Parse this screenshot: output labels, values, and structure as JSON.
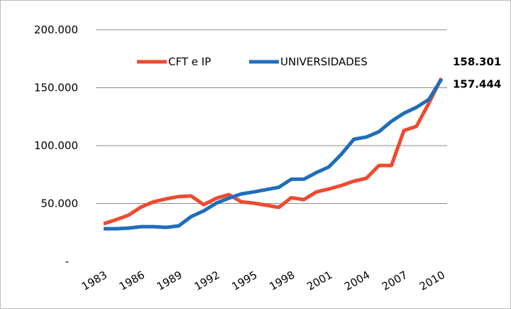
{
  "chart_data": {
    "type": "line",
    "x": [
      1983,
      1984,
      1985,
      1986,
      1987,
      1988,
      1989,
      1990,
      1991,
      1992,
      1993,
      1994,
      1995,
      1996,
      1997,
      1998,
      1999,
      2000,
      2001,
      2002,
      2003,
      2004,
      2005,
      2006,
      2007,
      2008,
      2009,
      2010
    ],
    "xlim": [
      1983,
      2010
    ],
    "xticks": [
      1983,
      1986,
      1989,
      1992,
      1995,
      1998,
      2001,
      2004,
      2007,
      2010
    ],
    "ylim": [
      0,
      200000
    ],
    "yticks": [
      {
        "value": 0,
        "label": "-"
      },
      {
        "value": 50000,
        "label": "50.000"
      },
      {
        "value": 100000,
        "label": "100.000"
      },
      {
        "value": 150000,
        "label": "150.000"
      },
      {
        "value": 200000,
        "label": "200.000"
      }
    ],
    "grid": true,
    "legend": "top",
    "series": [
      {
        "name": "CFT e IP",
        "color": "#ee4a2f",
        "values": [
          32500,
          36000,
          40000,
          47000,
          51500,
          54000,
          56000,
          56500,
          49000,
          54500,
          57700,
          51500,
          50300,
          48500,
          46600,
          55000,
          53400,
          60000,
          62500,
          65600,
          69300,
          71800,
          82800,
          82800,
          113000,
          116600,
          136800,
          158301
        ],
        "value_labels": [
          null,
          null,
          null,
          null,
          null,
          null,
          null,
          null,
          null,
          null,
          null,
          null,
          null,
          null,
          null,
          null,
          null,
          null,
          null,
          null,
          null,
          null,
          null,
          null,
          null,
          null,
          null,
          "158.301"
        ]
      },
      {
        "name": "UNIVERSIDADES",
        "color": "#1f6dbd",
        "values": [
          28200,
          28200,
          28800,
          30000,
          30000,
          29400,
          30700,
          38700,
          43600,
          50300,
          54600,
          58300,
          60000,
          62000,
          64000,
          71000,
          71000,
          76700,
          81600,
          92600,
          105500,
          107400,
          112000,
          121000,
          128000,
          133000,
          140000,
          157444
        ],
        "value_labels": [
          null,
          null,
          null,
          null,
          null,
          null,
          null,
          null,
          null,
          null,
          null,
          null,
          null,
          null,
          null,
          null,
          null,
          null,
          null,
          null,
          null,
          null,
          null,
          null,
          null,
          null,
          null,
          "157.444"
        ]
      }
    ]
  }
}
